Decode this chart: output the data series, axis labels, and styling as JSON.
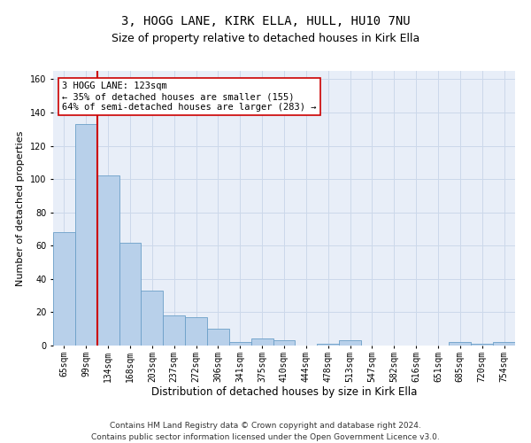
{
  "title1": "3, HOGG LANE, KIRK ELLA, HULL, HU10 7NU",
  "title2": "Size of property relative to detached houses in Kirk Ella",
  "xlabel": "Distribution of detached houses by size in Kirk Ella",
  "ylabel": "Number of detached properties",
  "categories": [
    "65sqm",
    "99sqm",
    "134sqm",
    "168sqm",
    "203sqm",
    "237sqm",
    "272sqm",
    "306sqm",
    "341sqm",
    "375sqm",
    "410sqm",
    "444sqm",
    "478sqm",
    "513sqm",
    "547sqm",
    "582sqm",
    "616sqm",
    "651sqm",
    "685sqm",
    "720sqm",
    "754sqm"
  ],
  "values": [
    68,
    133,
    102,
    62,
    33,
    18,
    17,
    10,
    2,
    4,
    3,
    0,
    1,
    3,
    0,
    0,
    0,
    0,
    2,
    1,
    2
  ],
  "bar_color": "#b8d0ea",
  "bar_edge_color": "#6b9fc8",
  "vline_x": 1.5,
  "vline_color": "#cc0000",
  "annotation_text": "3 HOGG LANE: 123sqm\n← 35% of detached houses are smaller (155)\n64% of semi-detached houses are larger (283) →",
  "annotation_box_color": "#ffffff",
  "annotation_box_edge": "#cc0000",
  "ylim": [
    0,
    165
  ],
  "yticks": [
    0,
    20,
    40,
    60,
    80,
    100,
    120,
    140,
    160
  ],
  "grid_color": "#ccd8ea",
  "bg_color": "#e8eef8",
  "footer": "Contains HM Land Registry data © Crown copyright and database right 2024.\nContains public sector information licensed under the Open Government Licence v3.0.",
  "title1_fontsize": 10,
  "title2_fontsize": 9,
  "xlabel_fontsize": 8.5,
  "ylabel_fontsize": 8,
  "tick_fontsize": 7,
  "footer_fontsize": 6.5,
  "annot_fontsize": 7.5
}
